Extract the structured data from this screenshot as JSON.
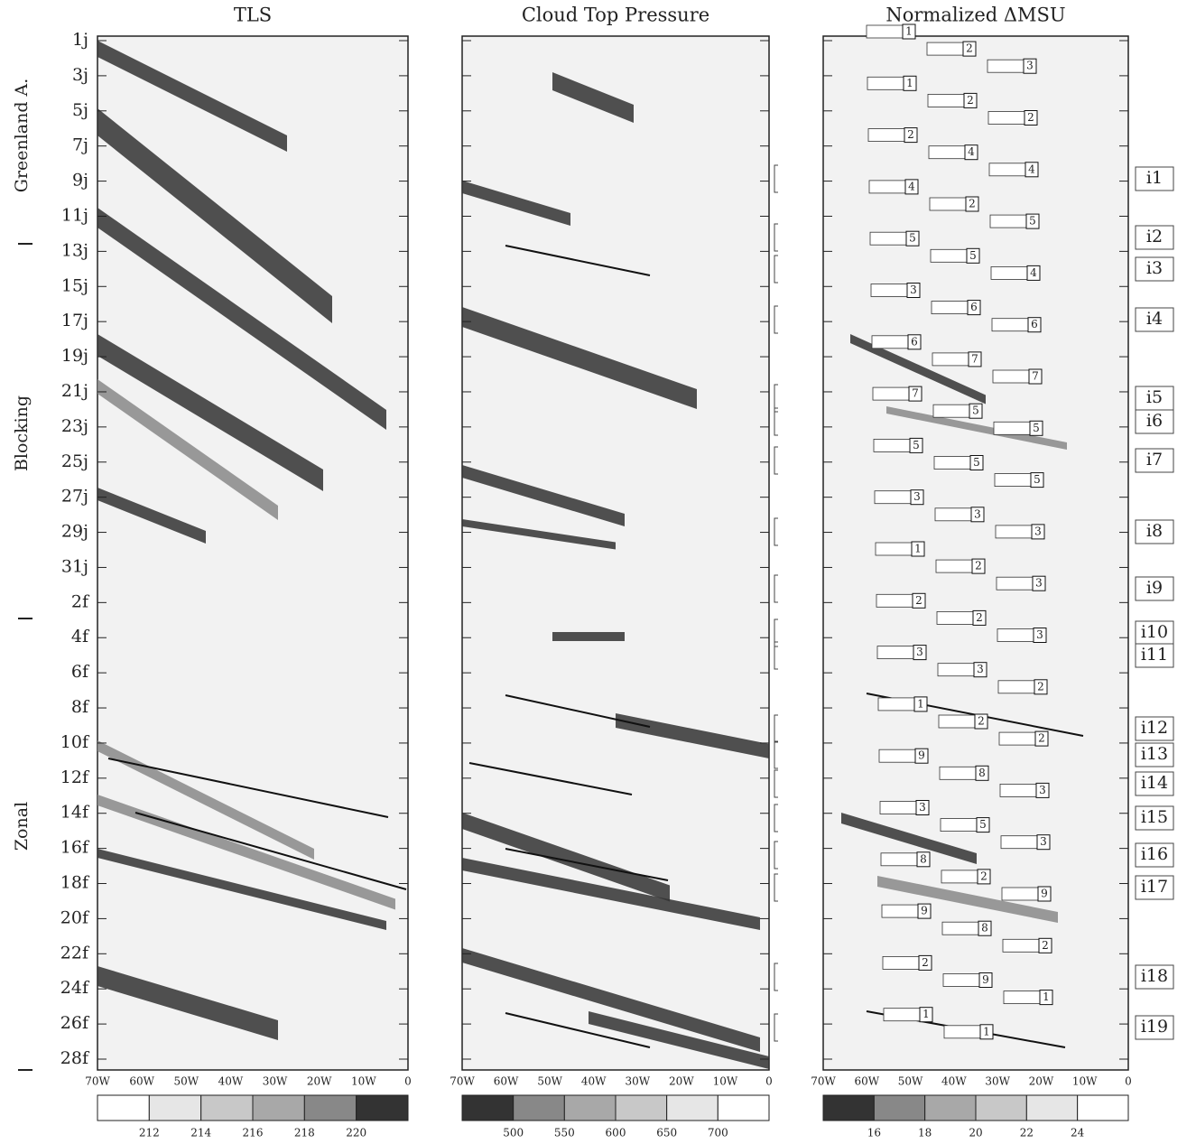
{
  "panels": [
    {
      "title": "TLS",
      "colorbar": [
        "212",
        "214",
        "216",
        "218",
        "220"
      ]
    },
    {
      "title": "Cloud Top Pressure",
      "colorbar": [
        "500",
        "550",
        "600",
        "650",
        "700"
      ]
    },
    {
      "title": "Normalized ΔMSU",
      "colorbar": [
        "16",
        "18",
        "20",
        "22",
        "24"
      ]
    }
  ],
  "dates": [
    "1j",
    "3j",
    "5j",
    "7j",
    "9j",
    "11j",
    "13j",
    "15j",
    "17j",
    "19j",
    "21j",
    "23j",
    "25j",
    "27j",
    "29j",
    "31j",
    "2f",
    "4f",
    "6f",
    "8f",
    "10f",
    "12f",
    "14f",
    "16f",
    "18f",
    "20f",
    "22f",
    "24f",
    "26f",
    "28f"
  ],
  "longitudes": [
    "70W",
    "60W",
    "50W",
    "40W",
    "30W",
    "20W",
    "10W",
    "0"
  ],
  "regimes": [
    "Greenland A.",
    "Blocking",
    "Zonal"
  ],
  "events": [
    "i1",
    "i2",
    "i3",
    "i4",
    "i5",
    "i6",
    "i7",
    "i8",
    "i9",
    "i10",
    "i11",
    "i12",
    "i13",
    "i14",
    "i15",
    "i16",
    "i17",
    "i18",
    "i19"
  ],
  "msu_markers": [
    "1",
    "2",
    "3",
    "1",
    "2",
    "2",
    "2",
    "4",
    "4",
    "4",
    "2",
    "5",
    "5",
    "5",
    "4",
    "3",
    "6",
    "6",
    "6",
    "7",
    "7",
    "7",
    "5",
    "5",
    "5",
    "5",
    "5",
    "3",
    "3",
    "3",
    "1",
    "2",
    "3",
    "2",
    "2",
    "3",
    "3",
    "3",
    "2",
    "1",
    "2",
    "2",
    "9",
    "8",
    "3",
    "3",
    "5",
    "3",
    "8",
    "2",
    "9",
    "9",
    "8",
    "2",
    "2",
    "9",
    "1",
    "1",
    "1"
  ]
}
